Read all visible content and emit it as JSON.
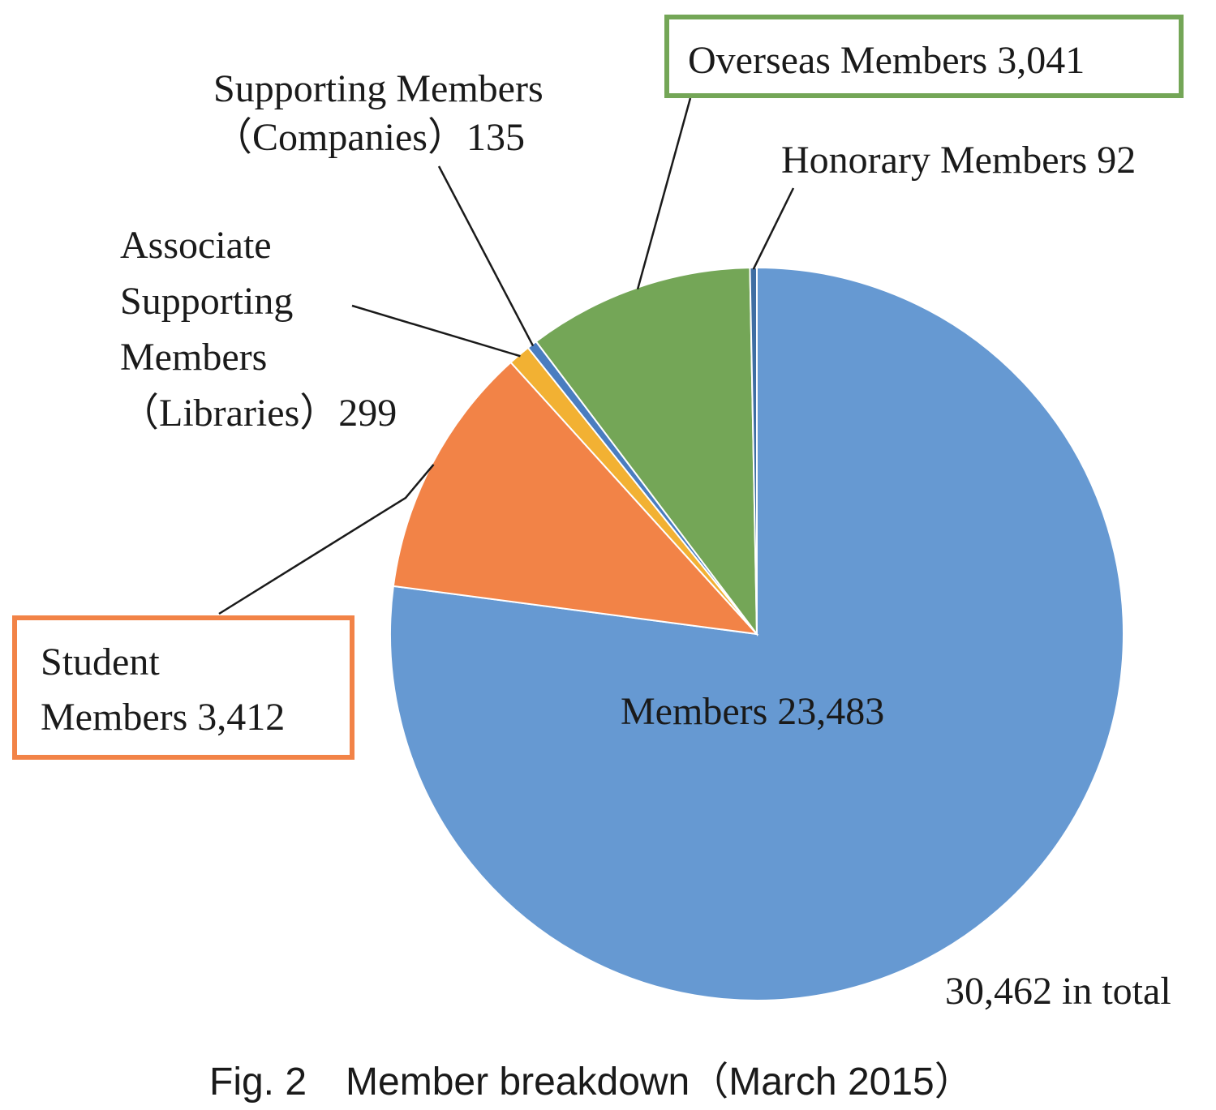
{
  "chart_data": {
    "type": "pie",
    "start_angle_deg": 0,
    "direction": "clockwise",
    "slices": [
      {
        "key": "members",
        "label": "Members",
        "value": 23483,
        "value_text": "23,483",
        "color": "#6699D2"
      },
      {
        "key": "student",
        "label_lines": [
          "Student",
          "Members"
        ],
        "value": 3412,
        "value_text": "3,412",
        "color": "#F28347",
        "box_color": "#F28347"
      },
      {
        "key": "associate",
        "label_lines": [
          "Associate",
          "Supporting",
          "Members",
          "（Libraries）"
        ],
        "value": 299,
        "value_text": "299",
        "color": "#F2B133"
      },
      {
        "key": "supporting",
        "label_lines": [
          "Supporting Members",
          "（Companies）"
        ],
        "value": 135,
        "value_text": "135",
        "color": "#4A7DC0"
      },
      {
        "key": "overseas",
        "label": "Overseas Members",
        "value": 3041,
        "value_text": "3,041",
        "color": "#74A657",
        "box_color": "#74A657"
      },
      {
        "key": "honorary",
        "label": "Honorary Members",
        "value": 92,
        "value_text": "92",
        "color": "#3F6EA3"
      }
    ],
    "total_text": "30,462 in total",
    "caption": "Fig. 2　Member breakdown（March 2015）"
  }
}
